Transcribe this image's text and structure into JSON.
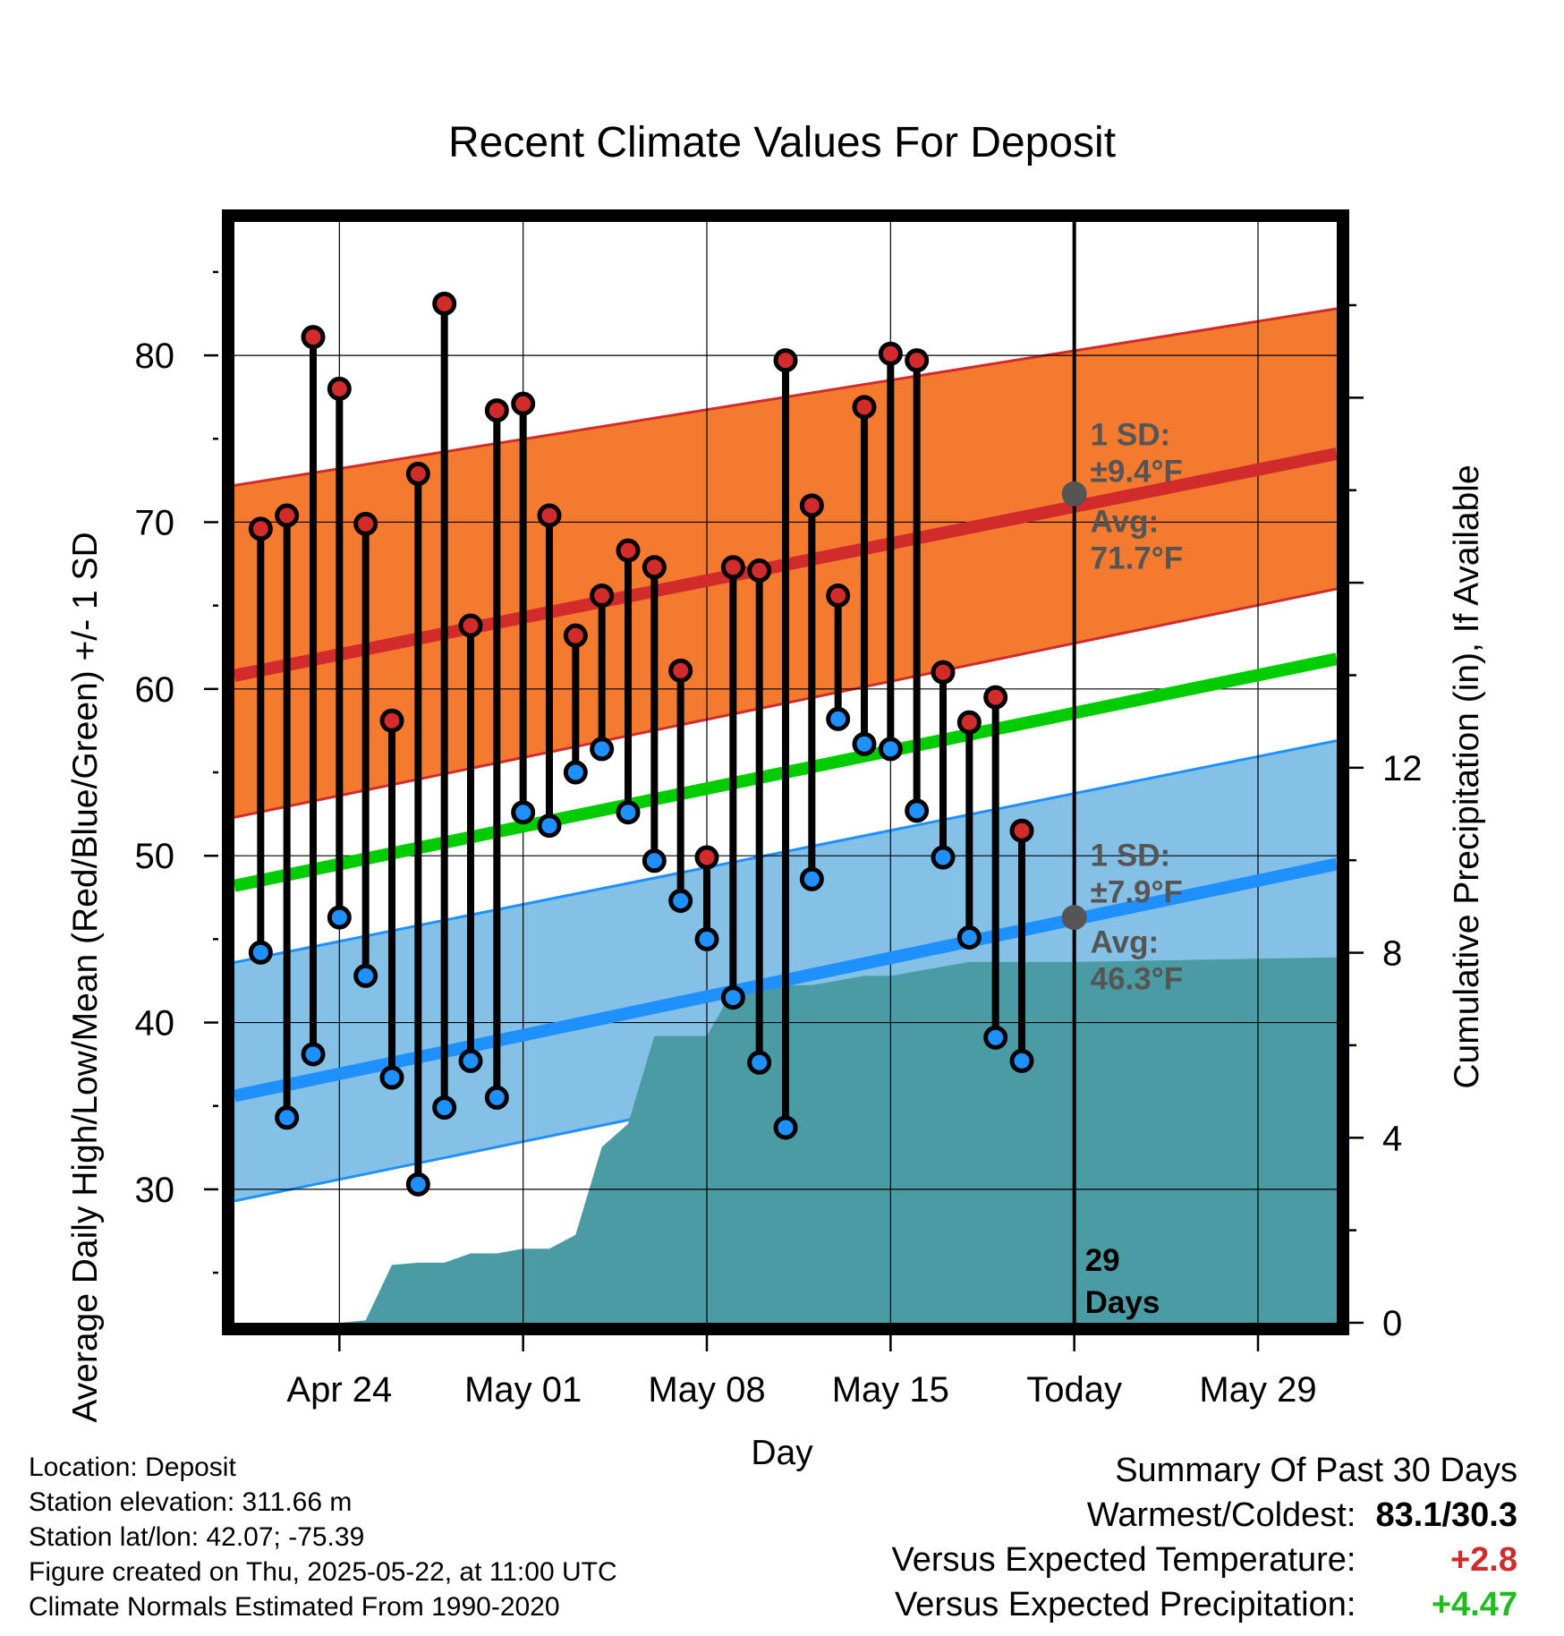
{
  "chart_data": {
    "type": "line",
    "title": "Recent Climate Values For Deposit",
    "xlabel": "Day",
    "ylabel": "Average Daily High/Low/Mean (Red/Blue/Green) +/- 1 SD",
    "ylabel_right": "Cumulative Precipitation (in), If Available",
    "ylim": [
      22,
      88
    ],
    "ylim_right": [
      0,
      23.8
    ],
    "x_range_days": [
      "2025-04-20",
      "2025-06-01"
    ],
    "yticks": [
      30,
      40,
      50,
      60,
      70,
      80
    ],
    "yticks_right": [
      0,
      4,
      8,
      12
    ],
    "xticks": [
      {
        "date": "2025-04-24",
        "label": "Apr 24"
      },
      {
        "date": "2025-05-01",
        "label": "May 01"
      },
      {
        "date": "2025-05-08",
        "label": "May 08"
      },
      {
        "date": "2025-05-15",
        "label": "May 15"
      },
      {
        "date": "2025-05-22",
        "label": "Today"
      },
      {
        "date": "2025-05-29",
        "label": "May 29"
      }
    ],
    "grid": true,
    "today": "2025-05-22",
    "colors": {
      "high_band": "#f47a30",
      "high_line": "#d22b2b",
      "low_band": "#85c1e6",
      "low_line": "#1e90ff",
      "mean_line": "#00cc00",
      "precip": "#4a9ba3",
      "high_marker": "#d22b2b",
      "low_marker": "#1e90ff",
      "positive_temp": "#d22b2b",
      "positive_precip": "#22bb22",
      "annotation": "#555555"
    },
    "normals": {
      "dates": [
        "2025-04-20",
        "2025-06-01"
      ],
      "high_avg": [
        60.8,
        74.1
      ],
      "high_upper": [
        72.2,
        82.8
      ],
      "high_lower": [
        52.3,
        66.0
      ],
      "low_avg": [
        35.6,
        49.5
      ],
      "low_upper": [
        43.6,
        56.9
      ],
      "low_lower": [
        29.3,
        42.9
      ],
      "mean_avg": [
        48.2,
        61.8
      ]
    },
    "daily": {
      "dates": [
        "2025-04-21",
        "2025-04-22",
        "2025-04-23",
        "2025-04-24",
        "2025-04-25",
        "2025-04-26",
        "2025-04-27",
        "2025-04-28",
        "2025-04-29",
        "2025-04-30",
        "2025-05-01",
        "2025-05-02",
        "2025-05-03",
        "2025-05-04",
        "2025-05-05",
        "2025-05-06",
        "2025-05-07",
        "2025-05-08",
        "2025-05-09",
        "2025-05-10",
        "2025-05-11",
        "2025-05-12",
        "2025-05-13",
        "2025-05-14",
        "2025-05-15",
        "2025-05-16",
        "2025-05-17",
        "2025-05-18",
        "2025-05-19",
        "2025-05-20",
        "2025-05-21"
      ],
      "highs": [
        69.6,
        70.4,
        81.1,
        78.0,
        69.9,
        58.1,
        72.9,
        83.1,
        63.8,
        76.7,
        77.1,
        70.4,
        63.2,
        65.6,
        68.3,
        67.3,
        61.1,
        49.9,
        67.3,
        67.1,
        79.7,
        71.0,
        65.6,
        76.9,
        80.1,
        79.7,
        61.0,
        58.0,
        59.5,
        51.5,
        null
      ],
      "lows": [
        44.2,
        34.3,
        38.1,
        46.3,
        42.8,
        36.7,
        30.3,
        34.9,
        37.7,
        35.5,
        52.6,
        51.8,
        55.0,
        56.4,
        52.6,
        49.7,
        47.3,
        45.0,
        41.5,
        37.6,
        33.7,
        48.6,
        58.2,
        56.7,
        56.4,
        52.7,
        49.9,
        45.1,
        39.1,
        37.7,
        null
      ]
    },
    "precip": {
      "dates": [
        "2025-04-20",
        "2025-04-21",
        "2025-04-22",
        "2025-04-23",
        "2025-04-24",
        "2025-04-25",
        "2025-04-26",
        "2025-04-27",
        "2025-04-28",
        "2025-04-29",
        "2025-04-30",
        "2025-05-01",
        "2025-05-02",
        "2025-05-03",
        "2025-05-04",
        "2025-05-05",
        "2025-05-06",
        "2025-05-07",
        "2025-05-08",
        "2025-05-09",
        "2025-05-10",
        "2025-05-11",
        "2025-05-12",
        "2025-05-13",
        "2025-05-14",
        "2025-05-15",
        "2025-05-16",
        "2025-05-17",
        "2025-05-18",
        "2025-05-19",
        "2025-05-20",
        "2025-05-21",
        "2025-05-22",
        "2025-06-01"
      ],
      "values": [
        0.0,
        0.0,
        0.0,
        0.0,
        0.0,
        0.05,
        1.25,
        1.3,
        1.3,
        1.5,
        1.5,
        1.6,
        1.6,
        1.9,
        3.8,
        4.3,
        6.2,
        6.2,
        6.2,
        7.2,
        7.3,
        7.3,
        7.3,
        7.4,
        7.5,
        7.5,
        7.6,
        7.7,
        7.8,
        7.8,
        7.8,
        7.8,
        7.8,
        7.9
      ]
    },
    "annotations": {
      "high_sd_label": "1 SD:",
      "high_sd_value": "±9.4°F",
      "high_avg_label": "Avg:",
      "high_avg_value": "71.7°F",
      "high_avg_today": 71.7,
      "low_sd_label": "1 SD:",
      "low_sd_value": "±7.9°F",
      "low_avg_label": "Avg:",
      "low_avg_value": "46.3°F",
      "low_avg_today": 46.3,
      "days_number": "29",
      "days_word": "Days"
    }
  },
  "footer": {
    "location": "Location: Deposit",
    "elevation": "Station elevation: 311.66 m",
    "latlon": "Station lat/lon: 42.07; -75.39",
    "created": "Figure created on Thu, 2025-05-22, at 11:00 UTC",
    "normals": "Climate Normals Estimated From 1990-2020"
  },
  "summary": {
    "title": "Summary Of Past 30 Days",
    "warmest_coldest_label": "Warmest/Coldest:",
    "warmest_coldest_value": "83.1/30.3",
    "temp_label": "Versus Expected Temperature:",
    "temp_value": "+2.8",
    "precip_label": "Versus Expected Precipitation:",
    "precip_value": "+4.47"
  }
}
